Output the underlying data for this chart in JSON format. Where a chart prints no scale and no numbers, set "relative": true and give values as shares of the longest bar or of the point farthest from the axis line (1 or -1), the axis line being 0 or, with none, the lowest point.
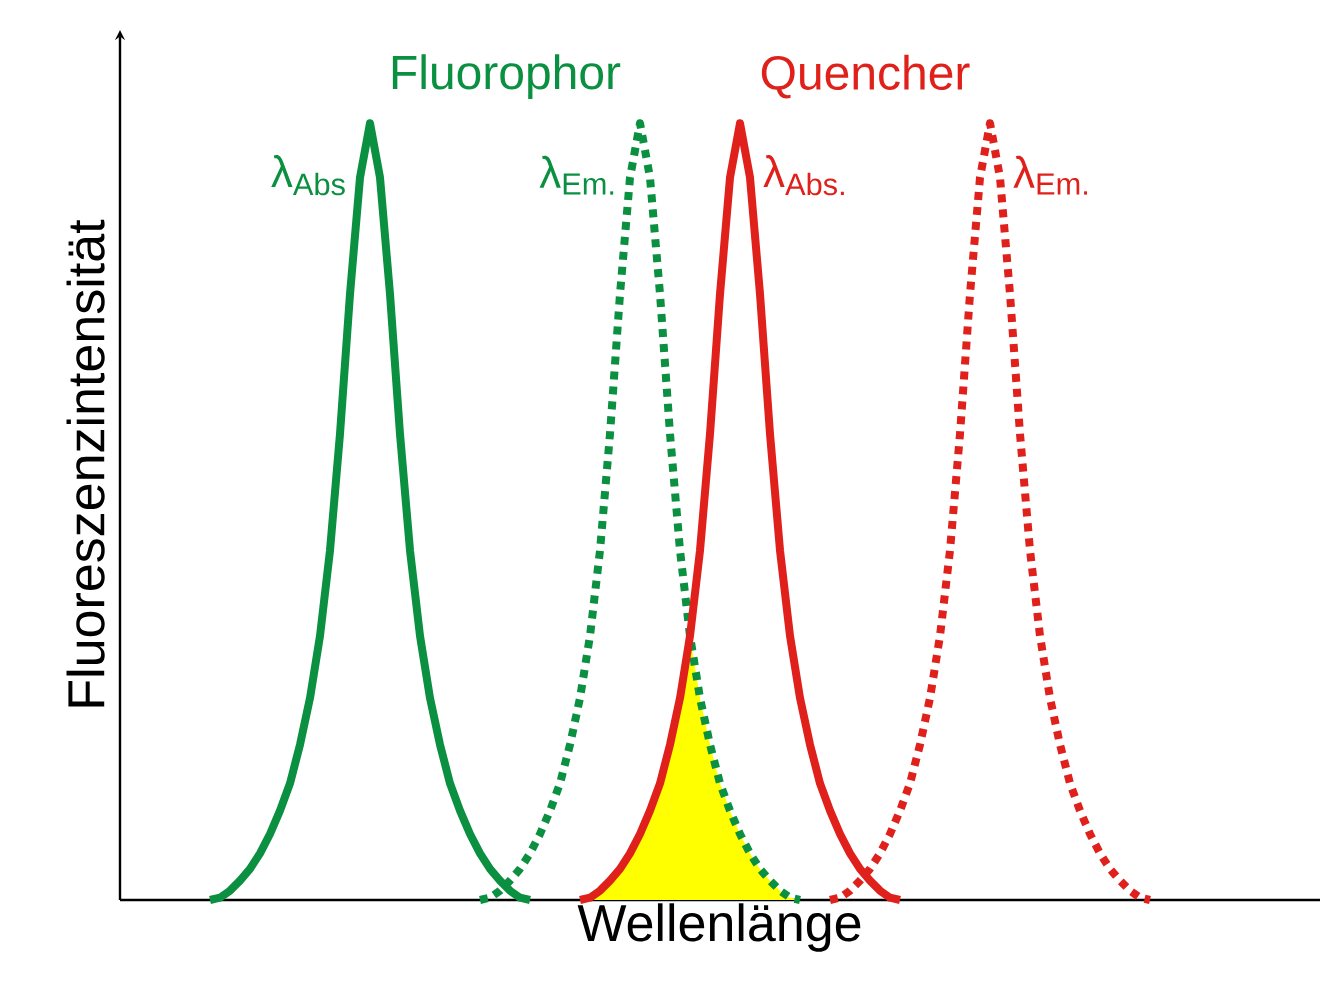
{
  "chart_data": {
    "type": "line",
    "relative": true,
    "xlabel": "Wellenlänge",
    "ylabel": "Fluoreszenzintensität",
    "annotations": [
      "Fluorophor",
      "Quencher"
    ],
    "categories": [
      null,
      null,
      null,
      null,
      null,
      null,
      null,
      null,
      null,
      null,
      null,
      null,
      null,
      null,
      null,
      null,
      null,
      null,
      null,
      null,
      null,
      null,
      null,
      null,
      null,
      null,
      null,
      null,
      null,
      null,
      null,
      null,
      null,
      null,
      null,
      null,
      null,
      null,
      null,
      null,
      null,
      null,
      null,
      null,
      null,
      null,
      null,
      null,
      null,
      null,
      null,
      null,
      null,
      null,
      null,
      null,
      null,
      null,
      null,
      null,
      null,
      null,
      null,
      null,
      null,
      null,
      null,
      null,
      null,
      null,
      null,
      null,
      null,
      null,
      null,
      null,
      null,
      null,
      null,
      null,
      null,
      null,
      null,
      null,
      null,
      null,
      null,
      null,
      null,
      null,
      null,
      null,
      null,
      null,
      null,
      null,
      null,
      null,
      null,
      null,
      null,
      null,
      null,
      null,
      null,
      null,
      null,
      null,
      null,
      null,
      null,
      null,
      null,
      null,
      null,
      null,
      null,
      null,
      null,
      null,
      null
    ],
    "series": [
      {
        "name": "λ$_{Abs}$",
        "color": "#0a9040",
        "line_style": "solid",
        "values": [
          null,
          null,
          null,
          null,
          null,
          null,
          null,
          null,
          null,
          0,
          0.003,
          0.012,
          0.025,
          0.04,
          0.06,
          0.085,
          0.115,
          0.15,
          0.2,
          0.26,
          0.34,
          0.45,
          0.6,
          0.78,
          0.93,
          1,
          0.93,
          0.78,
          0.6,
          0.45,
          0.34,
          0.26,
          0.2,
          0.15,
          0.115,
          0.085,
          0.06,
          0.04,
          0.025,
          0.012,
          0.003,
          0,
          null,
          null,
          null,
          null,
          null,
          null,
          null,
          null,
          null,
          null,
          null,
          null,
          null,
          null,
          null,
          null,
          null,
          null,
          null,
          null,
          null,
          null,
          null,
          null,
          null,
          null,
          null,
          null,
          null,
          null,
          null,
          null,
          null,
          null,
          null,
          null,
          null,
          null,
          null,
          null,
          null,
          null,
          null,
          null,
          null,
          null,
          null,
          null,
          null,
          null,
          null,
          null,
          null,
          null,
          null,
          null,
          null,
          null,
          null,
          null,
          null,
          null,
          null,
          null,
          null,
          null,
          null,
          null,
          null,
          null,
          null,
          null,
          null,
          null,
          null,
          null,
          null,
          null,
          null
        ]
      },
      {
        "name": "λ$_{Em.}$",
        "color": "#0a9040",
        "line_style": "dotted",
        "values": [
          null,
          null,
          null,
          null,
          null,
          null,
          null,
          null,
          null,
          null,
          null,
          null,
          null,
          null,
          null,
          null,
          null,
          null,
          null,
          null,
          null,
          null,
          null,
          null,
          null,
          null,
          null,
          null,
          null,
          null,
          null,
          null,
          null,
          null,
          null,
          null,
          0,
          0.003,
          0.012,
          0.025,
          0.04,
          0.06,
          0.085,
          0.115,
          0.15,
          0.2,
          0.26,
          0.34,
          0.45,
          0.6,
          0.78,
          0.93,
          1,
          0.93,
          0.78,
          0.6,
          0.45,
          0.34,
          0.26,
          0.2,
          0.15,
          0.115,
          0.085,
          0.06,
          0.04,
          0.025,
          0.012,
          0.003,
          0,
          null,
          null,
          null,
          null,
          null,
          null,
          null,
          null,
          null,
          null,
          null,
          null,
          null,
          null,
          null,
          null,
          null,
          null,
          null,
          null,
          null,
          null,
          null,
          null,
          null,
          null,
          null,
          null,
          null,
          null,
          null,
          null,
          null,
          null,
          null,
          null,
          null,
          null,
          null,
          null,
          null,
          null,
          null,
          null,
          null,
          null,
          null,
          null,
          null,
          null,
          null,
          null
        ]
      },
      {
        "name": "λ$_{Abs.}$",
        "color": "#e0201b",
        "line_style": "solid",
        "values": [
          null,
          null,
          null,
          null,
          null,
          null,
          null,
          null,
          null,
          null,
          null,
          null,
          null,
          null,
          null,
          null,
          null,
          null,
          null,
          null,
          null,
          null,
          null,
          null,
          null,
          null,
          null,
          null,
          null,
          null,
          null,
          null,
          null,
          null,
          null,
          null,
          null,
          null,
          null,
          null,
          null,
          null,
          null,
          null,
          null,
          null,
          0,
          0.003,
          0.012,
          0.025,
          0.04,
          0.06,
          0.085,
          0.115,
          0.15,
          0.2,
          0.26,
          0.34,
          0.45,
          0.6,
          0.78,
          0.93,
          1,
          0.93,
          0.78,
          0.6,
          0.45,
          0.34,
          0.26,
          0.2,
          0.15,
          0.115,
          0.085,
          0.06,
          0.04,
          0.025,
          0.012,
          0.003,
          0,
          null,
          null,
          null,
          null,
          null,
          null,
          null,
          null,
          null,
          null,
          null,
          null,
          null,
          null,
          null,
          null,
          null,
          null,
          null,
          null,
          null,
          null,
          null,
          null,
          null,
          null,
          null,
          null,
          null,
          null,
          null,
          null,
          null,
          null,
          null,
          null,
          null,
          null,
          null,
          null,
          null,
          null
        ]
      },
      {
        "name": "λ$_{Em.}$",
        "color": "#e0201b",
        "line_style": "dotted",
        "values": [
          null,
          null,
          null,
          null,
          null,
          null,
          null,
          null,
          null,
          null,
          null,
          null,
          null,
          null,
          null,
          null,
          null,
          null,
          null,
          null,
          null,
          null,
          null,
          null,
          null,
          null,
          null,
          null,
          null,
          null,
          null,
          null,
          null,
          null,
          null,
          null,
          null,
          null,
          null,
          null,
          null,
          null,
          null,
          null,
          null,
          null,
          null,
          null,
          null,
          null,
          null,
          null,
          null,
          null,
          null,
          null,
          null,
          null,
          null,
          null,
          null,
          null,
          null,
          null,
          null,
          null,
          null,
          null,
          null,
          null,
          null,
          0,
          0.003,
          0.012,
          0.025,
          0.04,
          0.06,
          0.085,
          0.115,
          0.15,
          0.2,
          0.26,
          0.34,
          0.45,
          0.6,
          0.78,
          0.93,
          1,
          0.93,
          0.78,
          0.6,
          0.45,
          0.34,
          0.26,
          0.2,
          0.15,
          0.115,
          0.085,
          0.06,
          0.04,
          0.025,
          0.012,
          0.003,
          0,
          null,
          null,
          null,
          null,
          null,
          null,
          null,
          null,
          null,
          null,
          null,
          null,
          null,
          null,
          null,
          null,
          null
        ]
      },
      {
        "type": "area",
        "color": "#ffff00",
        "values": [
          null,
          null,
          null,
          null,
          null,
          null,
          null,
          null,
          null,
          null,
          null,
          null,
          null,
          null,
          null,
          null,
          null,
          null,
          null,
          null,
          null,
          null,
          null,
          null,
          null,
          null,
          null,
          null,
          null,
          null,
          null,
          null,
          null,
          null,
          null,
          null,
          null,
          null,
          null,
          null,
          null,
          null,
          null,
          null,
          null,
          null,
          0,
          0.003,
          0.012,
          0.025,
          0.04,
          0.06,
          0.085,
          0.115,
          0.15,
          0.2,
          0.26,
          0.34,
          0.26,
          0.2,
          0.15,
          0.115,
          0.085,
          0.06,
          0.04,
          0.025,
          0.012,
          0.003,
          0,
          null,
          null,
          null,
          null,
          null,
          null,
          null,
          null,
          null,
          null,
          null,
          null,
          null,
          null,
          null,
          null,
          null,
          null,
          null,
          null,
          null,
          null,
          null,
          null,
          null,
          null,
          null,
          null,
          null,
          null,
          null,
          null,
          null,
          null,
          null,
          null,
          null,
          null,
          null,
          null,
          null,
          null,
          null,
          null,
          null,
          null,
          null,
          null,
          null,
          null,
          null,
          null
        ]
      }
    ]
  }
}
